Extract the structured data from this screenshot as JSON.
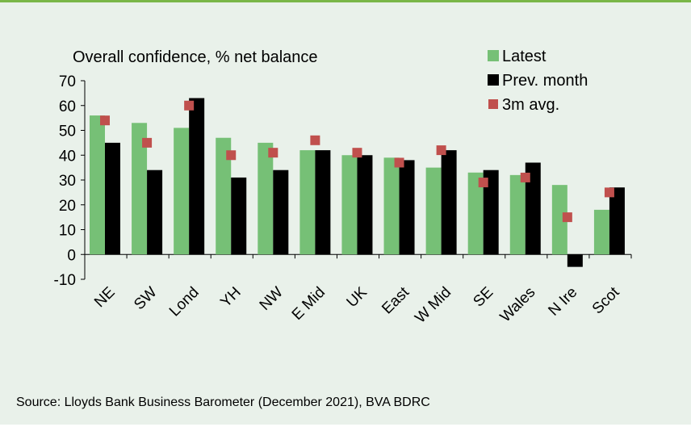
{
  "colors": {
    "background": "#e9f1ea",
    "top_rule": "#7ab648",
    "latest": "#76c076",
    "prev_month": "#000000",
    "avg_3m": "#c0504d"
  },
  "source": "Source: Lloyds Bank Business Barometer (December 2021), BVA BDRC",
  "chart_data": {
    "type": "bar",
    "title": "Overall confidence, % net balance",
    "xlabel": "",
    "ylabel": "",
    "ylim": [
      -10,
      70
    ],
    "yticks": [
      -10,
      0,
      10,
      20,
      30,
      40,
      50,
      60,
      70
    ],
    "grid": false,
    "legend_position": "top-right",
    "categories": [
      "NE",
      "SW",
      "Lond",
      "YH",
      "NW",
      "E Mid",
      "UK",
      "East",
      "W Mid",
      "SE",
      "Wales",
      "N Ire",
      "Scot"
    ],
    "series": [
      {
        "name": "Latest",
        "kind": "bar",
        "color": "#76c076",
        "values": [
          56,
          53,
          51,
          47,
          45,
          42,
          40,
          39,
          35,
          33,
          32,
          28,
          18
        ]
      },
      {
        "name": "Prev. month",
        "kind": "bar",
        "color": "#000000",
        "values": [
          45,
          34,
          63,
          31,
          34,
          42,
          40,
          38,
          42,
          34,
          37,
          -5,
          27
        ]
      },
      {
        "name": "3m avg.",
        "kind": "marker",
        "color": "#c0504d",
        "values": [
          54,
          45,
          60,
          40,
          41,
          46,
          41,
          37,
          42,
          29,
          31,
          15,
          25
        ]
      }
    ]
  }
}
